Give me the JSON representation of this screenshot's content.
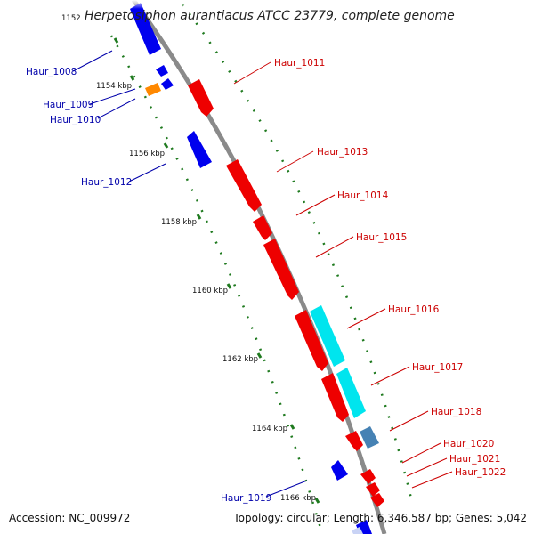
{
  "title": "Herpetosiphon aurantiacus ATCC 23779, complete genome",
  "accession": "Accession: NC_009972",
  "summary": "Topology: circular; Length: 6,346,587 bp; Genes: 5,042",
  "colors": {
    "backbone": "#8a8a8a",
    "tick": "#1f7a1f",
    "forward_label": "#cc0000",
    "reverse_label": "#0000aa"
  },
  "scale": {
    "tick_labels": [
      "1152 kbp",
      "1154 kbp",
      "1156 kbp",
      "1158 kbp",
      "1160 kbp",
      "1162 kbp",
      "1164 kbp",
      "1166 kbp"
    ],
    "visible_tick_text": [
      "1152",
      "1154 kbp",
      "1156 kbp",
      "1158 kbp",
      "1160 kbp",
      "1162 kbp",
      "1164 kbp",
      "1166 kbp"
    ]
  },
  "genes": [
    {
      "name": "Haur_1008",
      "strand": "reverse",
      "color": "#0000ee"
    },
    {
      "name": "Haur_1009",
      "strand": "reverse",
      "color": "#ff8800"
    },
    {
      "name": "Haur_1010",
      "strand": "reverse",
      "color": "#0000ee"
    },
    {
      "name": "Haur_1011",
      "strand": "forward",
      "color": "#ee0000"
    },
    {
      "name": "Haur_1012",
      "strand": "reverse",
      "color": "#0000ee"
    },
    {
      "name": "Haur_1013",
      "strand": "forward",
      "color": "#ee0000"
    },
    {
      "name": "Haur_1014",
      "strand": "forward",
      "color": "#ee0000"
    },
    {
      "name": "Haur_1015",
      "strand": "forward",
      "color": "#ee0000"
    },
    {
      "name": "Haur_1016",
      "strand": "forward",
      "color": "#00e5ee"
    },
    {
      "name": "Haur_1017",
      "strand": "forward",
      "color": "#00e5ee"
    },
    {
      "name": "Haur_1018",
      "strand": "forward",
      "color": "#4682b4"
    },
    {
      "name": "Haur_1019",
      "strand": "reverse",
      "color": "#0000ee"
    },
    {
      "name": "Haur_1020",
      "strand": "forward",
      "color": "#ee0000"
    },
    {
      "name": "Haur_1021",
      "strand": "forward",
      "color": "#ee0000"
    },
    {
      "name": "Haur_1022",
      "strand": "forward",
      "color": "#ee0000"
    }
  ]
}
